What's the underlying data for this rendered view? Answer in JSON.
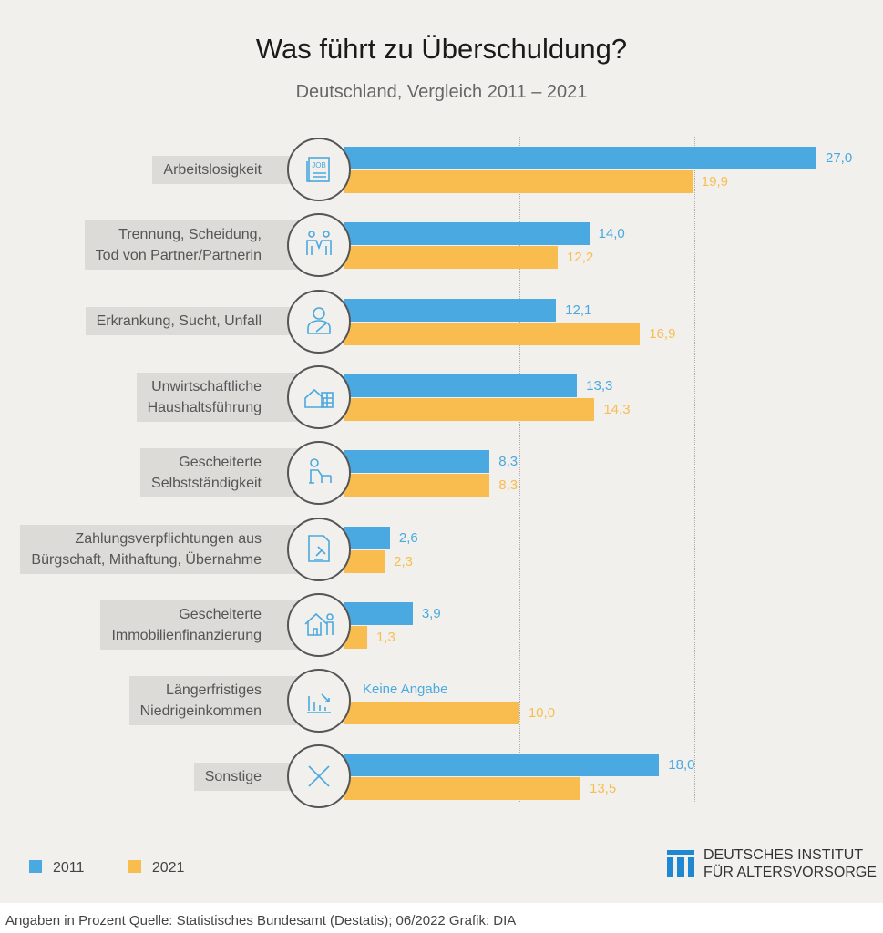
{
  "chart_data": {
    "type": "bar",
    "orientation": "horizontal",
    "title": "Was führt zu Überschuldung?",
    "subtitle": "Deutschland, Vergleich 2011 – 2021",
    "categories": [
      "Arbeitslosigkeit",
      "Trennung, Scheidung,\nTod von Partner/Partnerin",
      "Erkrankung, Sucht, Unfall",
      "Unwirtschaftliche\nHaushaltsführung",
      "Gescheiterte\nSelbstständigkeit",
      "Zahlungsverpflichtungen aus\nBürgschaft, Mithaftung, Übernahme",
      "Gescheiterte\nImmobilienfinanzierung",
      "Längerfristiges\nNiedrigeinkommen",
      "Sonstige"
    ],
    "icons": [
      "job-newspaper-icon",
      "couple-icon",
      "patient-icon",
      "house-calculator-icon",
      "desk-person-icon",
      "contract-gavel-icon",
      "house-person-icon",
      "declining-chart-icon",
      "cross-icon"
    ],
    "series": [
      {
        "name": "2011",
        "color": "#4aa9e0",
        "values": [
          27.0,
          14.0,
          12.1,
          13.3,
          8.3,
          2.6,
          3.9,
          null,
          18.0
        ],
        "labels": [
          "27,0",
          "14,0",
          "12,1",
          "13,3",
          "8,3",
          "2,6",
          "3,9",
          "Keine Angabe",
          "18,0"
        ]
      },
      {
        "name": "2021",
        "color": "#f9bd4f",
        "values": [
          19.9,
          12.2,
          16.9,
          14.3,
          8.3,
          2.3,
          1.3,
          10.0,
          13.5
        ],
        "labels": [
          "19,9",
          "12,2",
          "16,9",
          "14,3",
          "8,3",
          "2,3",
          "1,3",
          "10,0",
          "13,5"
        ]
      }
    ],
    "xlim": [
      0,
      27
    ],
    "gridlines": [
      10,
      20
    ],
    "legend": "bottom-left"
  },
  "legend": {
    "items": [
      "2011",
      "2021"
    ]
  },
  "logo": {
    "line1": "DEUTSCHES INSTITUT",
    "line2": "FÜR ALTERSVORSORGE"
  },
  "footer": "Angaben in Prozent  Quelle: Statistisches Bundesamt (Destatis); 06/2022  Grafik: DIA"
}
